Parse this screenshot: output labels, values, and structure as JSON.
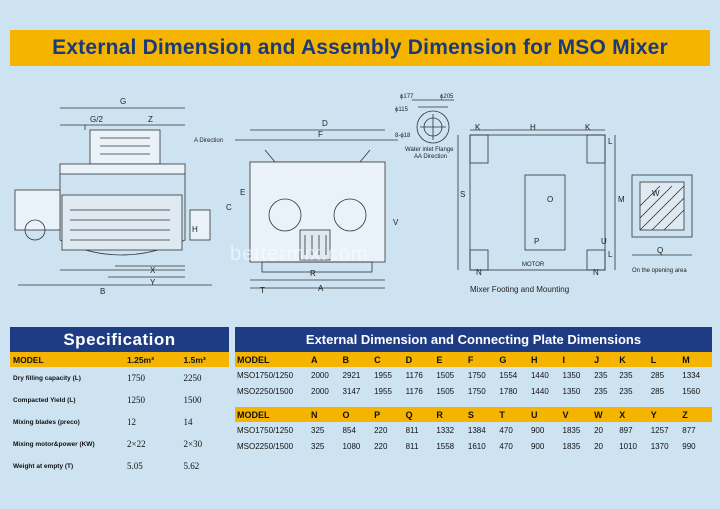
{
  "title": "External Dimension and Assembly Dimension for MSO Mixer",
  "watermark": "bettermix.com",
  "drawing": {
    "labels": {
      "g": "G",
      "g2": "G/2",
      "z": "Z",
      "a_direction": "A Direction",
      "h_left": "H",
      "x": "X",
      "y": "Y",
      "b": "B",
      "d": "D",
      "f": "F",
      "e": "E",
      "c": "C",
      "v": "V",
      "t": "T",
      "r": "R",
      "a": "A",
      "phi177": "ϕ177",
      "phi205": "ϕ205",
      "phi115": "ϕ115",
      "bolt": "8-ϕ18",
      "water_flange": "Water inlet Flange",
      "aa_direction": "AA Direction",
      "k1": "K",
      "h_top": "H",
      "k2": "K",
      "l1": "L",
      "l2": "L",
      "s": "S",
      "o": "O",
      "m": "M",
      "p": "P",
      "u": "U",
      "n1": "N",
      "n2": "N",
      "motor": "MOTOR",
      "footing_caption": "Mixer Footing and Mounting",
      "w": "W",
      "q": "Q",
      "opening_caption": "On the opening area"
    }
  },
  "spec": {
    "title": "Specification",
    "header": {
      "model": "MODEL",
      "col1": "1.25m³",
      "col2": "1.5m³"
    },
    "rows": [
      {
        "name": "Dry filling capacity (L)",
        "v1": "1750",
        "v2": "2250"
      },
      {
        "name": "Compacted Yield (L)",
        "v1": "1250",
        "v2": "1500"
      },
      {
        "name": "Mixing blades (preco)",
        "v1": "12",
        "v2": "14"
      },
      {
        "name": "Mixing motor&power (KW)",
        "v1": "2×22",
        "v2": "2×30"
      },
      {
        "name": "Weight at empty (T)",
        "v1": "5.05",
        "v2": "5.62"
      }
    ]
  },
  "dims": {
    "title": "External Dimension and Connecting Plate Dimensions",
    "table1": {
      "header": [
        "MODEL",
        "A",
        "B",
        "C",
        "D",
        "E",
        "F",
        "G",
        "H",
        "I",
        "J",
        "K",
        "L",
        "M"
      ],
      "rows": [
        [
          "MSO1750/1250",
          "2000",
          "2921",
          "1955",
          "1176",
          "1505",
          "1750",
          "1554",
          "1440",
          "1350",
          "235",
          "235",
          "285",
          "1334"
        ],
        [
          "MSO2250/1500",
          "2000",
          "3147",
          "1955",
          "1176",
          "1505",
          "1750",
          "1780",
          "1440",
          "1350",
          "235",
          "235",
          "285",
          "1560"
        ]
      ]
    },
    "table2": {
      "header": [
        "MODEL",
        "N",
        "O",
        "P",
        "Q",
        "R",
        "S",
        "T",
        "U",
        "V",
        "W",
        "X",
        "Y",
        "Z"
      ],
      "rows": [
        [
          "MSO1750/1250",
          "325",
          "854",
          "220",
          "811",
          "1332",
          "1384",
          "470",
          "900",
          "1835",
          "20",
          "897",
          "1257",
          "877"
        ],
        [
          "MSO2250/1500",
          "325",
          "1080",
          "220",
          "811",
          "1558",
          "1610",
          "470",
          "900",
          "1835",
          "20",
          "1010",
          "1370",
          "990"
        ]
      ]
    }
  }
}
